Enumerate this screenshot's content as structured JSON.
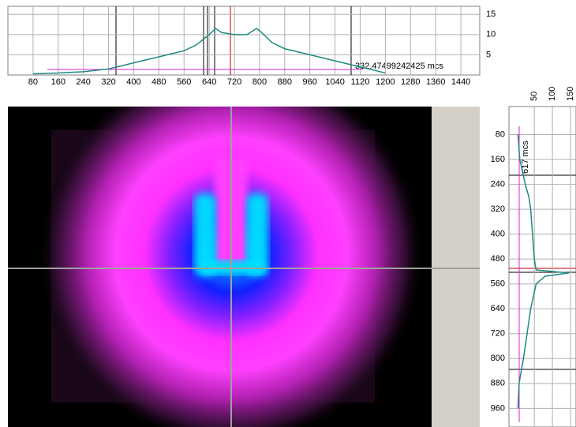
{
  "chart_data": [
    {
      "type": "line",
      "orientation": "horizontal",
      "x": [
        80,
        160,
        240,
        320,
        400,
        480,
        560,
        600,
        640,
        660,
        680,
        720,
        760,
        790,
        800,
        840,
        880,
        960,
        1040,
        1120,
        1200
      ],
      "values": [
        0.3,
        0.5,
        0.8,
        1.5,
        3,
        4.5,
        6,
        7.5,
        10,
        11.5,
        10.5,
        10,
        10,
        11.5,
        11,
        8,
        6.5,
        5,
        3.5,
        2,
        0.5
      ],
      "color": "#1e8a80",
      "xlim": [
        0,
        1500
      ],
      "ylim": [
        0,
        17
      ],
      "xticks": [
        80,
        160,
        240,
        320,
        400,
        480,
        560,
        640,
        720,
        800,
        880,
        960,
        1040,
        1120,
        1200,
        1280,
        1360,
        1440
      ],
      "yticks": [
        5,
        10,
        15
      ],
      "annotation": "332.47499242425 mcs",
      "annotation_color": "#e020e0",
      "grid": true
    },
    {
      "type": "line",
      "orientation": "vertical",
      "x": [
        80,
        160,
        240,
        280,
        320,
        400,
        480,
        515,
        525,
        535,
        560,
        640,
        720,
        800,
        880,
        960
      ],
      "values": [
        5,
        10,
        25,
        35,
        40,
        45,
        50,
        55,
        145,
        80,
        55,
        40,
        30,
        20,
        8,
        5
      ],
      "color": "#1e8a80",
      "xlim": [
        0,
        1020
      ],
      "ylim": [
        -20,
        165
      ],
      "xticks": [
        80,
        160,
        240,
        320,
        400,
        480,
        560,
        640,
        720,
        800,
        880,
        960
      ],
      "yticks": [
        50,
        100,
        150
      ],
      "annotation": "617 mcs",
      "annotation_color": "#e020e0",
      "grid": true
    }
  ]
}
